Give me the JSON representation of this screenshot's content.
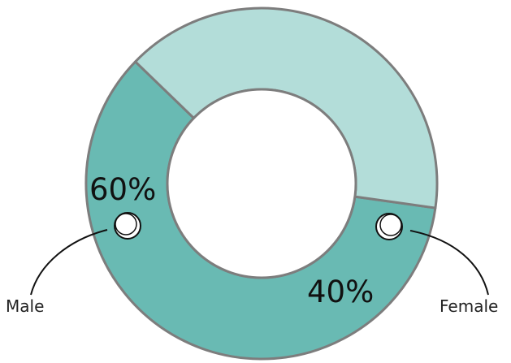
{
  "chart_data": {
    "type": "pie",
    "categories": [
      "Male",
      "Female"
    ],
    "values": [
      60,
      40
    ],
    "labels": [
      "60%",
      "40%"
    ],
    "colors": [
      "#69bab3",
      "#b3ddd9"
    ],
    "title": "",
    "legend": "callouts left and right"
  },
  "colors": {
    "outline": "#7d7d7d",
    "callout_line": "#111111",
    "marker_fill": "#ffffff"
  }
}
